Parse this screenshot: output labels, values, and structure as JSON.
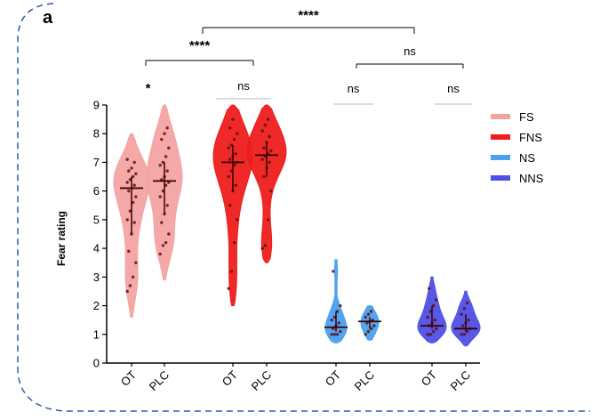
{
  "panel_label": "a",
  "chart_data": {
    "type": "violin",
    "ylabel": "Fear rating",
    "ylim": [
      0,
      9
    ],
    "yticks": [
      0,
      1,
      2,
      3,
      4,
      5,
      6,
      7,
      8,
      9
    ],
    "grid": false,
    "legend_position": "right",
    "series": [
      {
        "name": "FS",
        "color": "#f4a3a3",
        "groups": [
          {
            "label": "OT",
            "min": 1.6,
            "max": 8.0,
            "median": 6.1,
            "points": [
              2.5,
              2.7,
              3.0,
              3.5,
              3.9,
              4.5,
              4.9,
              5.0,
              5.3,
              5.6,
              5.8,
              6.0,
              6.1,
              6.2,
              6.3,
              6.4,
              6.5,
              6.6,
              6.7,
              6.8,
              7.0,
              7.1
            ]
          },
          {
            "label": "PLC",
            "min": 2.9,
            "max": 9.0,
            "median": 6.35,
            "points": [
              3.8,
              4.1,
              4.2,
              4.5,
              4.9,
              5.2,
              5.5,
              5.8,
              6.0,
              6.2,
              6.3,
              6.4,
              6.5,
              6.7,
              6.9,
              7.0,
              7.2,
              7.5,
              7.8,
              8.0,
              8.2
            ]
          }
        ]
      },
      {
        "name": "FNS",
        "color": "#ee1c1c",
        "groups": [
          {
            "label": "OT",
            "min": 2.0,
            "max": 9.0,
            "median": 7.0,
            "points": [
              2.6,
              3.2,
              4.2,
              5.0,
              5.5,
              6.0,
              6.2,
              6.5,
              6.7,
              6.9,
              7.0,
              7.1,
              7.2,
              7.3,
              7.5,
              7.6,
              7.8,
              8.0,
              8.2,
              8.5
            ]
          },
          {
            "label": "PLC",
            "min": 3.5,
            "max": 9.0,
            "median": 7.25,
            "points": [
              4.0,
              4.1,
              5.0,
              6.0,
              6.5,
              6.8,
              7.0,
              7.1,
              7.2,
              7.3,
              7.4,
              7.5,
              7.7,
              7.9,
              8.1,
              8.3,
              8.5
            ]
          }
        ]
      },
      {
        "name": "NS",
        "color": "#4a9ff0",
        "groups": [
          {
            "label": "OT",
            "min": 0.7,
            "max": 3.6,
            "median": 1.25,
            "points": [
              1.0,
              1.0,
              1.0,
              1.1,
              1.2,
              1.3,
              1.4,
              1.5,
              1.6,
              1.8,
              2.0,
              3.2
            ]
          },
          {
            "label": "PLC",
            "min": 0.8,
            "max": 2.0,
            "median": 1.45,
            "points": [
              1.0,
              1.1,
              1.2,
              1.3,
              1.4,
              1.45,
              1.5,
              1.6,
              1.7,
              1.8
            ]
          }
        ]
      },
      {
        "name": "NNS",
        "color": "#4f4fe6",
        "groups": [
          {
            "label": "OT",
            "min": 0.7,
            "max": 3.0,
            "median": 1.3,
            "points": [
              1.0,
              1.0,
              1.1,
              1.2,
              1.3,
              1.4,
              1.5,
              1.6,
              1.8,
              2.0,
              2.2,
              2.6
            ]
          },
          {
            "label": "PLC",
            "min": 0.6,
            "max": 2.5,
            "median": 1.2,
            "points": [
              1.0,
              1.0,
              1.1,
              1.2,
              1.3,
              1.4,
              1.5,
              1.7,
              1.9,
              2.1
            ]
          }
        ]
      }
    ],
    "significance": [
      {
        "label": "****",
        "from_group": "FS-OT",
        "to_group": "NS-PLC",
        "style": "bold"
      },
      {
        "label": "****",
        "from_group": "FS-OT",
        "to_group": "FNS-OT",
        "style": "bold"
      },
      {
        "label": "ns",
        "from_group": "NS-OT",
        "to_group": "NNS-PLC",
        "style": "normal"
      },
      {
        "label": "*",
        "from_group": "FS-OT",
        "to_group": "FS-PLC",
        "style": "bold"
      },
      {
        "label": "ns",
        "from_group": "FNS-OT",
        "to_group": "FNS-PLC",
        "style": "normal"
      },
      {
        "label": "ns",
        "from_group": "NS-OT",
        "to_group": "NS-PLC",
        "style": "normal"
      },
      {
        "label": "ns",
        "from_group": "NNS-OT",
        "to_group": "NNS-PLC",
        "style": "normal"
      }
    ]
  }
}
